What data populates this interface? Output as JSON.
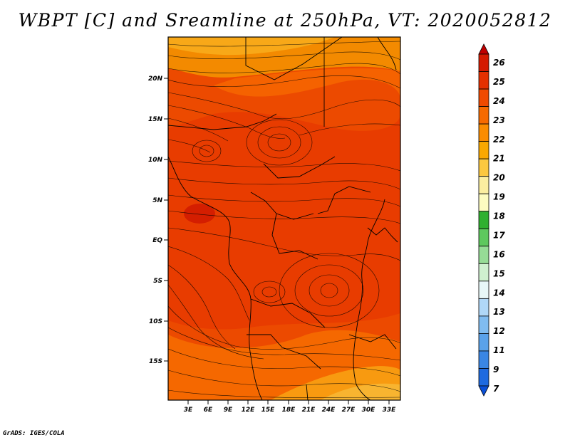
{
  "title": "WBPT [C] and Sreamline at 250hPa, VT: 2020052812",
  "footer": "GrADS: IGES/COLA",
  "map": {
    "lat_ticks": [
      "20N",
      "15N",
      "10N",
      "5N",
      "EQ",
      "5S",
      "10S",
      "15S"
    ],
    "lon_ticks": [
      "3E",
      "6E",
      "9E",
      "12E",
      "15E",
      "18E",
      "21E",
      "24E",
      "27E",
      "30E",
      "33E"
    ],
    "domain": {
      "lon_range": [
        0,
        35
      ],
      "lat_range": [
        -20,
        24
      ]
    }
  },
  "colorbar": {
    "labels": [
      "26",
      "25",
      "24",
      "23",
      "22",
      "21",
      "20",
      "19",
      "18",
      "17",
      "16",
      "15",
      "14",
      "13",
      "12",
      "11",
      "9",
      "7"
    ],
    "colors": [
      "#c00000",
      "#d41a00",
      "#e43000",
      "#f04a00",
      "#f66a00",
      "#fa8c00",
      "#faa800",
      "#fcc840",
      "#fbeea0",
      "#fdfcc0",
      "#30b030",
      "#5ec85e",
      "#96dc96",
      "#cff0cf",
      "#e8f8f8",
      "#b0d8f8",
      "#80bcf0",
      "#5aa2ea",
      "#3a86e4",
      "#1e6ae0",
      "#0a50d8"
    ],
    "units": "C"
  }
}
